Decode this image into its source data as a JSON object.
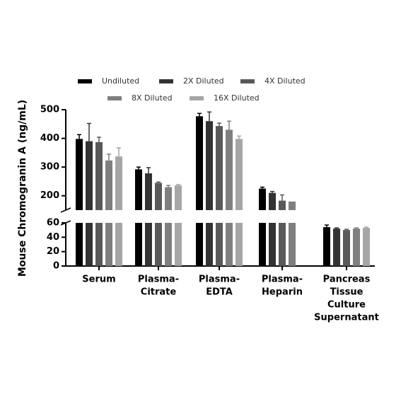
{
  "chart_data": {
    "type": "bar",
    "y_label": "Mouse Chromogranin A (ng/mL)",
    "categories": [
      [
        "Serum"
      ],
      [
        "Plasma-",
        "Citrate"
      ],
      [
        "Plasma-",
        "EDTA"
      ],
      [
        "Plasma-",
        "Heparin"
      ],
      [
        "Pancreas",
        "Tissue",
        "Culture",
        "Supernatant"
      ]
    ],
    "series": [
      {
        "name": "Undiluted",
        "color": "#000000",
        "values": [
          398,
          292,
          477,
          225,
          54
        ],
        "errors": [
          15,
          8,
          10,
          5,
          3
        ]
      },
      {
        "name": "2X Diluted",
        "color": "#333333",
        "values": [
          390,
          278,
          460,
          210,
          52
        ],
        "errors": [
          62,
          20,
          32,
          5,
          1
        ]
      },
      {
        "name": "4X Diluted",
        "color": "#595959",
        "values": [
          387,
          245,
          443,
          183,
          50
        ],
        "errors": [
          17,
          3,
          10,
          20,
          1
        ]
      },
      {
        "name": "8X Diluted",
        "color": "#7f7f7f",
        "values": [
          323,
          230,
          430,
          180,
          52
        ],
        "errors": [
          22,
          6,
          30,
          null,
          1
        ]
      },
      {
        "name": "16X Diluted",
        "color": "#a6a6a6",
        "values": [
          337,
          236,
          398,
          null,
          53
        ],
        "errors": [
          30,
          3,
          10,
          null,
          1
        ]
      }
    ],
    "ylim_segments": [
      [
        0,
        60
      ],
      [
        150,
        500
      ]
    ],
    "yticks": [
      0,
      20,
      40,
      60,
      200,
      300,
      400,
      500
    ]
  }
}
